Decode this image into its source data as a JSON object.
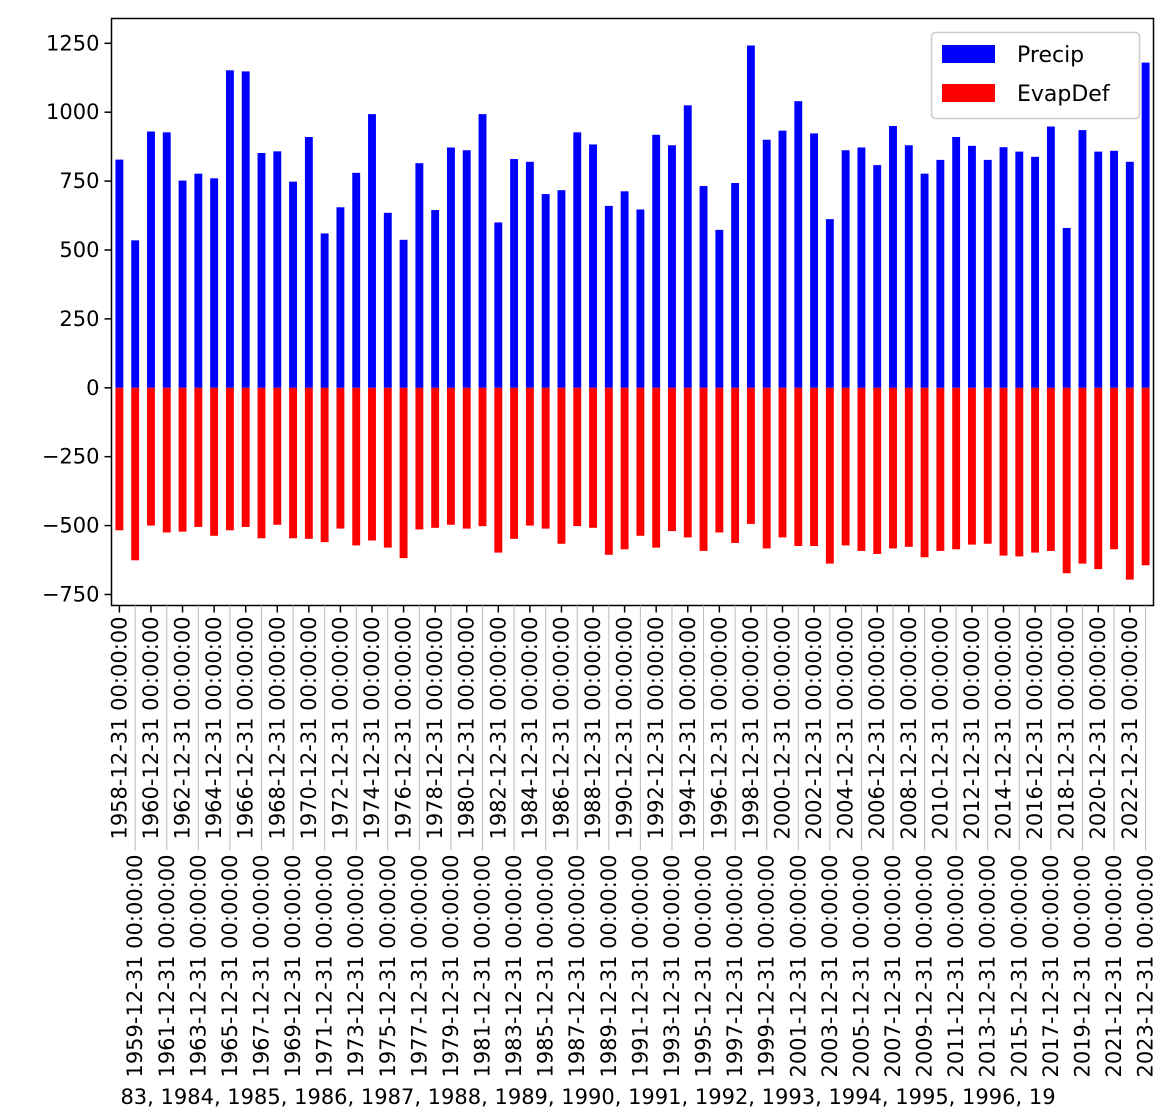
{
  "chart_data": {
    "type": "bar",
    "title": "",
    "xlabel": "83, 1984, 1985, 1986, 1987, 1988, 1989, 1990, 1991, 1992, 1993, 1994, 1995, 1996, 19",
    "ylabel": "",
    "ylim": [
      -790,
      1340
    ],
    "yticks": [
      -750,
      -500,
      -250,
      0,
      250,
      500,
      750,
      1000,
      1250
    ],
    "ytick_labels": [
      "−750",
      "−500",
      "−250",
      "0",
      "250",
      "500",
      "750",
      "1000",
      "1250"
    ],
    "categories": [
      "1958-12-31 00:00:00",
      "1959-12-31 00:00:00",
      "1960-12-31 00:00:00",
      "1961-12-31 00:00:00",
      "1962-12-31 00:00:00",
      "1963-12-31 00:00:00",
      "1964-12-31 00:00:00",
      "1965-12-31 00:00:00",
      "1966-12-31 00:00:00",
      "1967-12-31 00:00:00",
      "1968-12-31 00:00:00",
      "1969-12-31 00:00:00",
      "1970-12-31 00:00:00",
      "1971-12-31 00:00:00",
      "1972-12-31 00:00:00",
      "1973-12-31 00:00:00",
      "1974-12-31 00:00:00",
      "1975-12-31 00:00:00",
      "1976-12-31 00:00:00",
      "1977-12-31 00:00:00",
      "1978-12-31 00:00:00",
      "1979-12-31 00:00:00",
      "1980-12-31 00:00:00",
      "1981-12-31 00:00:00",
      "1982-12-31 00:00:00",
      "1983-12-31 00:00:00",
      "1984-12-31 00:00:00",
      "1985-12-31 00:00:00",
      "1986-12-31 00:00:00",
      "1987-12-31 00:00:00",
      "1988-12-31 00:00:00",
      "1989-12-31 00:00:00",
      "1990-12-31 00:00:00",
      "1991-12-31 00:00:00",
      "1992-12-31 00:00:00",
      "1993-12-31 00:00:00",
      "1994-12-31 00:00:00",
      "1995-12-31 00:00:00",
      "1996-12-31 00:00:00",
      "1997-12-31 00:00:00",
      "1998-12-31 00:00:00",
      "1999-12-31 00:00:00",
      "2000-12-31 00:00:00",
      "2001-12-31 00:00:00",
      "2002-12-31 00:00:00",
      "2003-12-31 00:00:00",
      "2004-12-31 00:00:00",
      "2005-12-31 00:00:00",
      "2006-12-31 00:00:00",
      "2007-12-31 00:00:00",
      "2008-12-31 00:00:00",
      "2009-12-31 00:00:00",
      "2010-12-31 00:00:00",
      "2011-12-31 00:00:00",
      "2012-12-31 00:00:00",
      "2013-12-31 00:00:00",
      "2014-12-31 00:00:00",
      "2015-12-31 00:00:00",
      "2016-12-31 00:00:00",
      "2017-12-31 00:00:00",
      "2018-12-31 00:00:00",
      "2019-12-31 00:00:00",
      "2020-12-31 00:00:00",
      "2021-12-31 00:00:00",
      "2022-12-31 00:00:00",
      "2023-12-31 00:00:00"
    ],
    "series": [
      {
        "name": "Precip",
        "color": "#0000ff",
        "values": [
          828,
          535,
          930,
          927,
          752,
          777,
          760,
          1152,
          1148,
          852,
          858,
          748,
          910,
          560,
          655,
          780,
          993,
          635,
          537,
          815,
          645,
          872,
          862,
          993,
          600,
          830,
          820,
          703,
          717,
          927,
          883,
          660,
          713,
          647,
          918,
          880,
          1025,
          732,
          573,
          743,
          1242,
          900,
          933,
          1040,
          923,
          612,
          862,
          872,
          808,
          950,
          880,
          777,
          827,
          910,
          878,
          827,
          873,
          857,
          838,
          948,
          580,
          935,
          857,
          860,
          820,
          1180
        ]
      },
      {
        "name": "EvapDef",
        "color": "#ff0000",
        "values": [
          -517,
          -626,
          -500,
          -525,
          -522,
          -505,
          -537,
          -517,
          -505,
          -546,
          -497,
          -546,
          -548,
          -560,
          -511,
          -572,
          -554,
          -580,
          -618,
          -514,
          -508,
          -497,
          -511,
          -502,
          -598,
          -548,
          -500,
          -511,
          -566,
          -502,
          -508,
          -606,
          -586,
          -537,
          -580,
          -520,
          -543,
          -592,
          -525,
          -563,
          -494,
          -583,
          -543,
          -574,
          -574,
          -638,
          -572,
          -592,
          -603,
          -583,
          -577,
          -615,
          -592,
          -586,
          -569,
          -566,
          -609,
          -612,
          -598,
          -592,
          -673,
          -638,
          -658,
          -586,
          -696,
          -644
        ]
      }
    ],
    "legend": {
      "placement": "top-right",
      "entries": [
        "Precip",
        "EvapDef"
      ]
    },
    "grid": false
  }
}
